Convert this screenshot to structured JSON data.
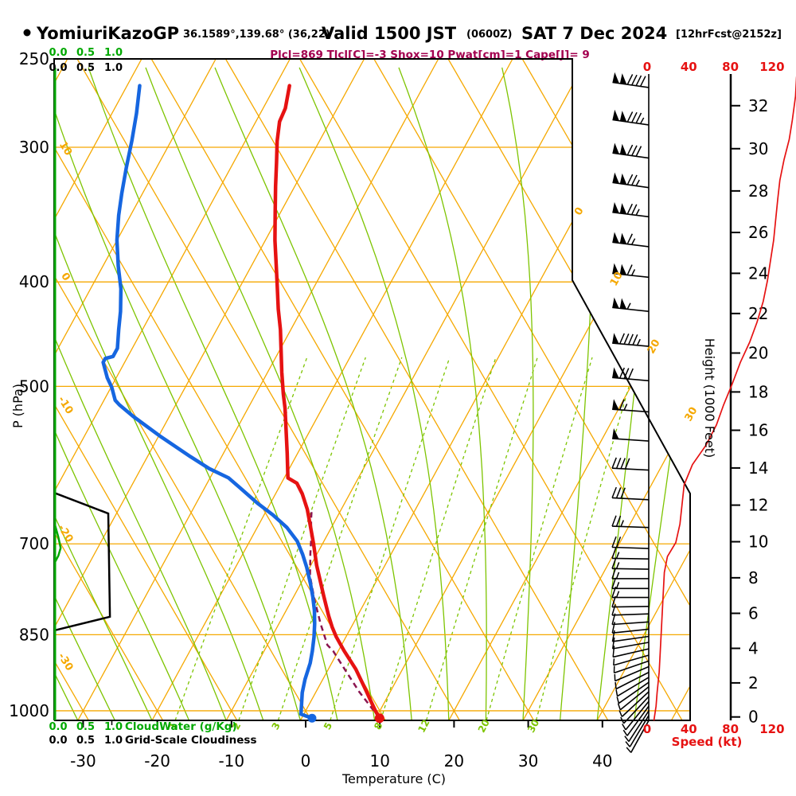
{
  "title": {
    "bullet": "●",
    "station": "YomiuriKazoGP",
    "coords": "36.1589°,139.68° (36,22)",
    "valid": "Valid 1500 JST",
    "valid_z": "(0600Z)",
    "date": "SAT 7 Dec 2024",
    "fcst": "[12hrFcst@2152z]"
  },
  "params_line": "Plcl=869 Tlcl[C]=-3 Shox=10 Pwat[cm]=1 Cape[J]= 9",
  "colors": {
    "orange": "#F5A800",
    "yellow_green": "#7DC400",
    "bright_green": "#00A800",
    "blue": "#1666E0",
    "red": "#E61212",
    "maroon": "#8B1550",
    "magenta_text": "#A3004F",
    "black": "#000000"
  },
  "axes": {
    "pressure": {
      "title": "P (hPa)",
      "ticks": [
        250,
        300,
        400,
        500,
        700,
        850,
        1000
      ]
    },
    "temperature": {
      "title": "Temperature (C)",
      "ticks": [
        -30,
        -20,
        -10,
        0,
        10,
        20,
        30,
        40
      ]
    },
    "height": {
      "title": "Height (1000 Feet)",
      "ticks": [
        0,
        2,
        4,
        6,
        8,
        10,
        12,
        14,
        16,
        18,
        20,
        22,
        24,
        26,
        28,
        30,
        32
      ]
    },
    "speed": {
      "title": "Speed (kt)",
      "ticks": [
        0,
        40,
        80,
        120
      ]
    },
    "cloud_scale": {
      "green_ticks": [
        "0.0",
        "0.5",
        "1.0"
      ],
      "black_ticks": [
        "0.0",
        "0.5",
        "1.0"
      ],
      "green_label": "CloudWater (g/Kg)",
      "black_label": "Grid-Scale Cloudiness"
    }
  },
  "iso_labels": {
    "left_dry_adiabats": [
      10,
      0,
      -10,
      -20,
      -30
    ],
    "right_isotherms": [
      0,
      10,
      20,
      30
    ]
  },
  "chart_data": {
    "type": "skewt-log-p sounding",
    "title": "YomiuriKazoGP Valid 1500 JST (0600Z) SAT 7 Dec 2024",
    "pressure_range_hPa": [
      250,
      1050
    ],
    "temp_axis_range_C": [
      -30,
      40
    ],
    "isotherms_C": {
      "from": -80,
      "to": 50,
      "step": 10
    },
    "dry_adiabats_C": {
      "from": -80,
      "to": 90,
      "step": 10
    },
    "moist_adiabats_C": {
      "from": -35,
      "to": 45,
      "step": 5
    },
    "mixing_ratio_lines_gkg": [
      1,
      2,
      3,
      5,
      8,
      12,
      20,
      30
    ],
    "temperature_profile": [
      {
        "p": 1016,
        "t": 10.5
      },
      {
        "p": 1000,
        "t": 9.4
      },
      {
        "p": 957,
        "t": 6.6
      },
      {
        "p": 915,
        "t": 3.7
      },
      {
        "p": 880,
        "t": 0.8
      },
      {
        "p": 854,
        "t": -1.3
      },
      {
        "p": 836,
        "t": -2.6
      },
      {
        "p": 816,
        "t": -3.9
      },
      {
        "p": 781,
        "t": -6.1
      },
      {
        "p": 762,
        "t": -7.3
      },
      {
        "p": 733,
        "t": -9.2
      },
      {
        "p": 700,
        "t": -11.2
      },
      {
        "p": 673,
        "t": -13.0
      },
      {
        "p": 650,
        "t": -14.6
      },
      {
        "p": 629,
        "t": -16.4
      },
      {
        "p": 615,
        "t": -17.9
      },
      {
        "p": 608,
        "t": -19.5
      },
      {
        "p": 577,
        "t": -21.4
      },
      {
        "p": 524,
        "t": -25.0
      },
      {
        "p": 508,
        "t": -26.3
      },
      {
        "p": 485,
        "t": -28.1
      },
      {
        "p": 443,
        "t": -31.4
      },
      {
        "p": 424,
        "t": -33.2
      },
      {
        "p": 405,
        "t": -34.9
      },
      {
        "p": 387,
        "t": -36.6
      },
      {
        "p": 366,
        "t": -38.7
      },
      {
        "p": 345,
        "t": -40.7
      },
      {
        "p": 326,
        "t": -42.6
      },
      {
        "p": 310,
        "t": -44.2
      },
      {
        "p": 296,
        "t": -45.7
      },
      {
        "p": 284,
        "t": -46.8
      },
      {
        "p": 276,
        "t": -47.0
      },
      {
        "p": 263,
        "t": -48.1
      }
    ],
    "dewpoint_profile": [
      {
        "p": 1016,
        "t": 1.4
      },
      {
        "p": 1007,
        "t": -0.4
      },
      {
        "p": 962,
        "t": -1.8
      },
      {
        "p": 935,
        "t": -2.4
      },
      {
        "p": 903,
        "t": -2.9
      },
      {
        "p": 880,
        "t": -3.5
      },
      {
        "p": 854,
        "t": -4.3
      },
      {
        "p": 830,
        "t": -5.2
      },
      {
        "p": 807,
        "t": -6.2
      },
      {
        "p": 784,
        "t": -7.4
      },
      {
        "p": 762,
        "t": -8.7
      },
      {
        "p": 736,
        "t": -10.4
      },
      {
        "p": 716,
        "t": -11.9
      },
      {
        "p": 696,
        "t": -13.6
      },
      {
        "p": 676,
        "t": -16.0
      },
      {
        "p": 658,
        "t": -18.8
      },
      {
        "p": 642,
        "t": -21.7
      },
      {
        "p": 620,
        "t": -25.4
      },
      {
        "p": 608,
        "t": -27.5
      },
      {
        "p": 596,
        "t": -30.8
      },
      {
        "p": 581,
        "t": -34.2
      },
      {
        "p": 557,
        "t": -39.6
      },
      {
        "p": 533,
        "t": -44.9
      },
      {
        "p": 520,
        "t": -47.6
      },
      {
        "p": 515,
        "t": -48.5
      },
      {
        "p": 501,
        "t": -49.9
      },
      {
        "p": 491,
        "t": -51.2
      },
      {
        "p": 475,
        "t": -52.9
      },
      {
        "p": 471,
        "t": -52.9
      },
      {
        "p": 469,
        "t": -52.0
      },
      {
        "p": 461,
        "t": -52.0
      },
      {
        "p": 443,
        "t": -53.2
      },
      {
        "p": 426,
        "t": -54.3
      },
      {
        "p": 406,
        "t": -55.9
      },
      {
        "p": 387,
        "t": -57.9
      },
      {
        "p": 366,
        "t": -60.0
      },
      {
        "p": 347,
        "t": -61.6
      },
      {
        "p": 331,
        "t": -62.8
      },
      {
        "p": 313,
        "t": -64.1
      },
      {
        "p": 296,
        "t": -65.3
      },
      {
        "p": 279,
        "t": -66.7
      },
      {
        "p": 263,
        "t": -68.3
      }
    ],
    "parcel_path": [
      {
        "p": 1016,
        "t": 10.5
      },
      {
        "p": 960,
        "t": 5.8
      },
      {
        "p": 915,
        "t": 2.2
      },
      {
        "p": 880,
        "t": -0.7
      },
      {
        "p": 869,
        "t": -1.9
      },
      {
        "p": 830,
        "t": -4.4
      },
      {
        "p": 790,
        "t": -6.9
      },
      {
        "p": 750,
        "t": -9.3
      },
      {
        "p": 715,
        "t": -10.9
      },
      {
        "p": 690,
        "t": -12.0
      },
      {
        "p": 665,
        "t": -13.3
      },
      {
        "p": 650,
        "t": -14.0
      }
    ],
    "wind_barbs": [
      {
        "p": 264,
        "kt": 140,
        "ang": 8
      },
      {
        "p": 286,
        "kt": 136,
        "ang": 8
      },
      {
        "p": 307,
        "kt": 131,
        "ang": 8
      },
      {
        "p": 327,
        "kt": 127,
        "ang": 8
      },
      {
        "p": 348,
        "kt": 123,
        "ang": 7
      },
      {
        "p": 371,
        "kt": 119,
        "ang": 7
      },
      {
        "p": 396,
        "kt": 115,
        "ang": 6
      },
      {
        "p": 426,
        "kt": 108,
        "ang": 6
      },
      {
        "p": 459,
        "kt": 97,
        "ang": 5
      },
      {
        "p": 494,
        "kt": 82,
        "ang": 5
      },
      {
        "p": 528,
        "kt": 66,
        "ang": 4
      },
      {
        "p": 562,
        "kt": 52,
        "ang": 4
      },
      {
        "p": 598,
        "kt": 40,
        "ang": 3
      },
      {
        "p": 637,
        "kt": 32,
        "ang": 3
      },
      {
        "p": 676,
        "kt": 29,
        "ang": 2
      },
      {
        "p": 707,
        "kt": 22,
        "ang": 2
      },
      {
        "p": 723,
        "kt": 17,
        "ang": 1
      },
      {
        "p": 739,
        "kt": 15,
        "ang": 1
      },
      {
        "p": 754,
        "kt": 14,
        "ang": 0
      },
      {
        "p": 770,
        "kt": 13,
        "ang": 0
      },
      {
        "p": 785,
        "kt": 13,
        "ang": 0
      },
      {
        "p": 800,
        "kt": 12,
        "ang": -1
      },
      {
        "p": 813,
        "kt": 12,
        "ang": -2
      },
      {
        "p": 827,
        "kt": 12,
        "ang": -4
      },
      {
        "p": 840,
        "kt": 11,
        "ang": -6
      },
      {
        "p": 853,
        "kt": 11,
        "ang": -8
      },
      {
        "p": 864,
        "kt": 10,
        "ang": -10
      },
      {
        "p": 876,
        "kt": 10,
        "ang": -13
      },
      {
        "p": 888,
        "kt": 9,
        "ang": -16
      },
      {
        "p": 899,
        "kt": 9,
        "ang": -19
      },
      {
        "p": 910,
        "kt": 8,
        "ang": -23
      },
      {
        "p": 921,
        "kt": 8,
        "ang": -27
      },
      {
        "p": 931,
        "kt": 7,
        "ang": -31
      },
      {
        "p": 941,
        "kt": 7,
        "ang": -35
      },
      {
        "p": 950,
        "kt": 6,
        "ang": -39
      },
      {
        "p": 960,
        "kt": 6,
        "ang": -43
      },
      {
        "p": 970,
        "kt": 6,
        "ang": -47
      },
      {
        "p": 980,
        "kt": 5,
        "ang": -51
      },
      {
        "p": 990,
        "kt": 5,
        "ang": -54
      },
      {
        "p": 1000,
        "kt": 5,
        "ang": -57
      },
      {
        "p": 1010,
        "kt": 5,
        "ang": -59
      },
      {
        "p": 1021,
        "kt": 4,
        "ang": -61
      }
    ],
    "wind_speed_profile": [
      {
        "p": 1021,
        "kt": 5
      },
      {
        "p": 990,
        "kt": 7
      },
      {
        "p": 962,
        "kt": 8
      },
      {
        "p": 921,
        "kt": 10
      },
      {
        "p": 883,
        "kt": 11
      },
      {
        "p": 846,
        "kt": 12
      },
      {
        "p": 810,
        "kt": 13
      },
      {
        "p": 776,
        "kt": 14
      },
      {
        "p": 744,
        "kt": 15
      },
      {
        "p": 719,
        "kt": 18
      },
      {
        "p": 698,
        "kt": 26
      },
      {
        "p": 671,
        "kt": 30
      },
      {
        "p": 644,
        "kt": 32
      },
      {
        "p": 617,
        "kt": 34
      },
      {
        "p": 591,
        "kt": 42
      },
      {
        "p": 567,
        "kt": 55
      },
      {
        "p": 543,
        "kt": 65
      },
      {
        "p": 520,
        "kt": 72
      },
      {
        "p": 498,
        "kt": 80
      },
      {
        "p": 475,
        "kt": 88
      },
      {
        "p": 455,
        "kt": 97
      },
      {
        "p": 436,
        "kt": 104
      },
      {
        "p": 417,
        "kt": 110
      },
      {
        "p": 399,
        "kt": 114
      },
      {
        "p": 382,
        "kt": 117
      },
      {
        "p": 366,
        "kt": 120
      },
      {
        "p": 350,
        "kt": 122
      },
      {
        "p": 335,
        "kt": 124
      },
      {
        "p": 322,
        "kt": 126
      },
      {
        "p": 308,
        "kt": 130
      },
      {
        "p": 295,
        "kt": 135
      },
      {
        "p": 283,
        "kt": 138
      },
      {
        "p": 269,
        "kt": 141
      },
      {
        "p": 258,
        "kt": 142
      }
    ],
    "cloudiness_profile": [
      {
        "p": 628,
        "v": 0
      },
      {
        "p": 656,
        "v": 0.93
      },
      {
        "p": 818,
        "v": 0.96
      },
      {
        "p": 842,
        "v": 0
      }
    ],
    "cloudwater_profile": [
      {
        "p": 672,
        "v": 0
      },
      {
        "p": 690,
        "v": 0.06
      },
      {
        "p": 706,
        "v": 0.1
      },
      {
        "p": 718,
        "v": 0.06
      },
      {
        "p": 728,
        "v": 0
      }
    ]
  }
}
